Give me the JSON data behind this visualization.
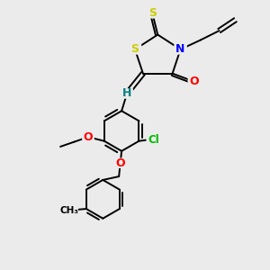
{
  "bg_color": "#ebebeb",
  "bond_color": "#000000",
  "bond_width": 1.4,
  "atom_colors": {
    "S": "#cccc00",
    "N": "#0000ff",
    "O": "#ff0000",
    "Cl": "#00bb00",
    "H": "#008080"
  }
}
